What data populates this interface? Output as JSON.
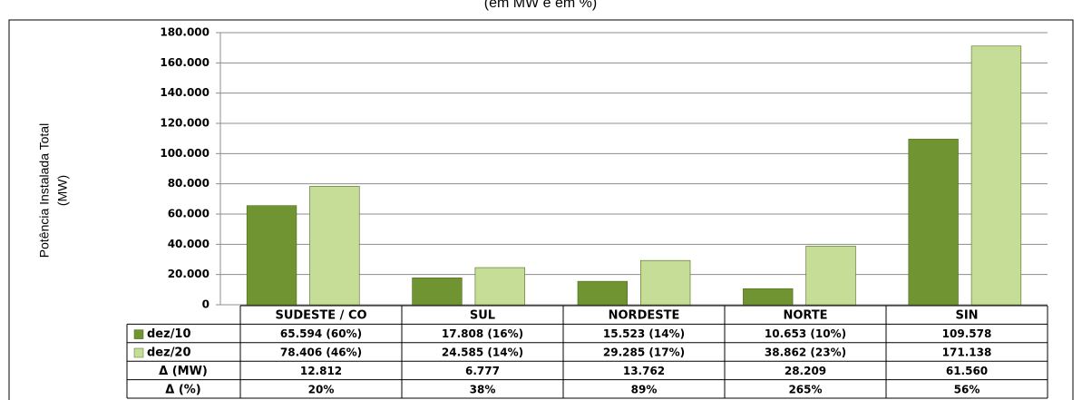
{
  "chart_data": {
    "type": "bar",
    "subtitle": "(em MW e em %)",
    "ylabel": "Potência Instalada Total",
    "ylabel_unit": "(MW)",
    "categories": [
      "SUDESTE / CO",
      "SUL",
      "NORDESTE",
      "NORTE",
      "SIN"
    ],
    "series": [
      {
        "name": "dez/10",
        "color": "#6f9431",
        "values": [
          65594,
          17808,
          15523,
          10653,
          109578
        ],
        "value_labels": [
          "65.594 (60%)",
          "17.808 (16%)",
          "15.523 (14%)",
          "10.653 (10%)",
          "109.578"
        ]
      },
      {
        "name": "dez/20",
        "color": "#c6dd98",
        "values": [
          78406,
          24585,
          29285,
          38862,
          171138
        ],
        "value_labels": [
          "78.406 (46%)",
          "24.585 (14%)",
          "29.285 (17%)",
          "38.862 (23%)",
          "171.138"
        ]
      }
    ],
    "table_rows": [
      {
        "name": "Δ (MW)",
        "values": [
          12812,
          6777,
          13762,
          28209,
          61560
        ],
        "value_labels": [
          "12.812",
          "6.777",
          "13.762",
          "28.209",
          "61.560"
        ]
      },
      {
        "name": "Δ (%)",
        "values": [
          20,
          38,
          89,
          265,
          56
        ],
        "value_labels": [
          "20%",
          "38%",
          "89%",
          "265%",
          "56%"
        ]
      }
    ],
    "ylim": [
      0,
      180000
    ],
    "yticks": [
      0,
      {
        "value": 20000,
        "label": "20.000"
      },
      {
        "value": 40000,
        "label": "40.000"
      },
      {
        "value": 60000,
        "label": "60.000"
      },
      {
        "value": 80000,
        "label": "80.000"
      },
      {
        "value": 100000,
        "label": "100.000"
      },
      {
        "value": 120000,
        "label": "120.000"
      },
      {
        "value": 140000,
        "label": "140.000"
      },
      {
        "value": 160000,
        "label": "160.000"
      },
      {
        "value": 180000,
        "label": "180.000"
      }
    ],
    "grid": true
  }
}
